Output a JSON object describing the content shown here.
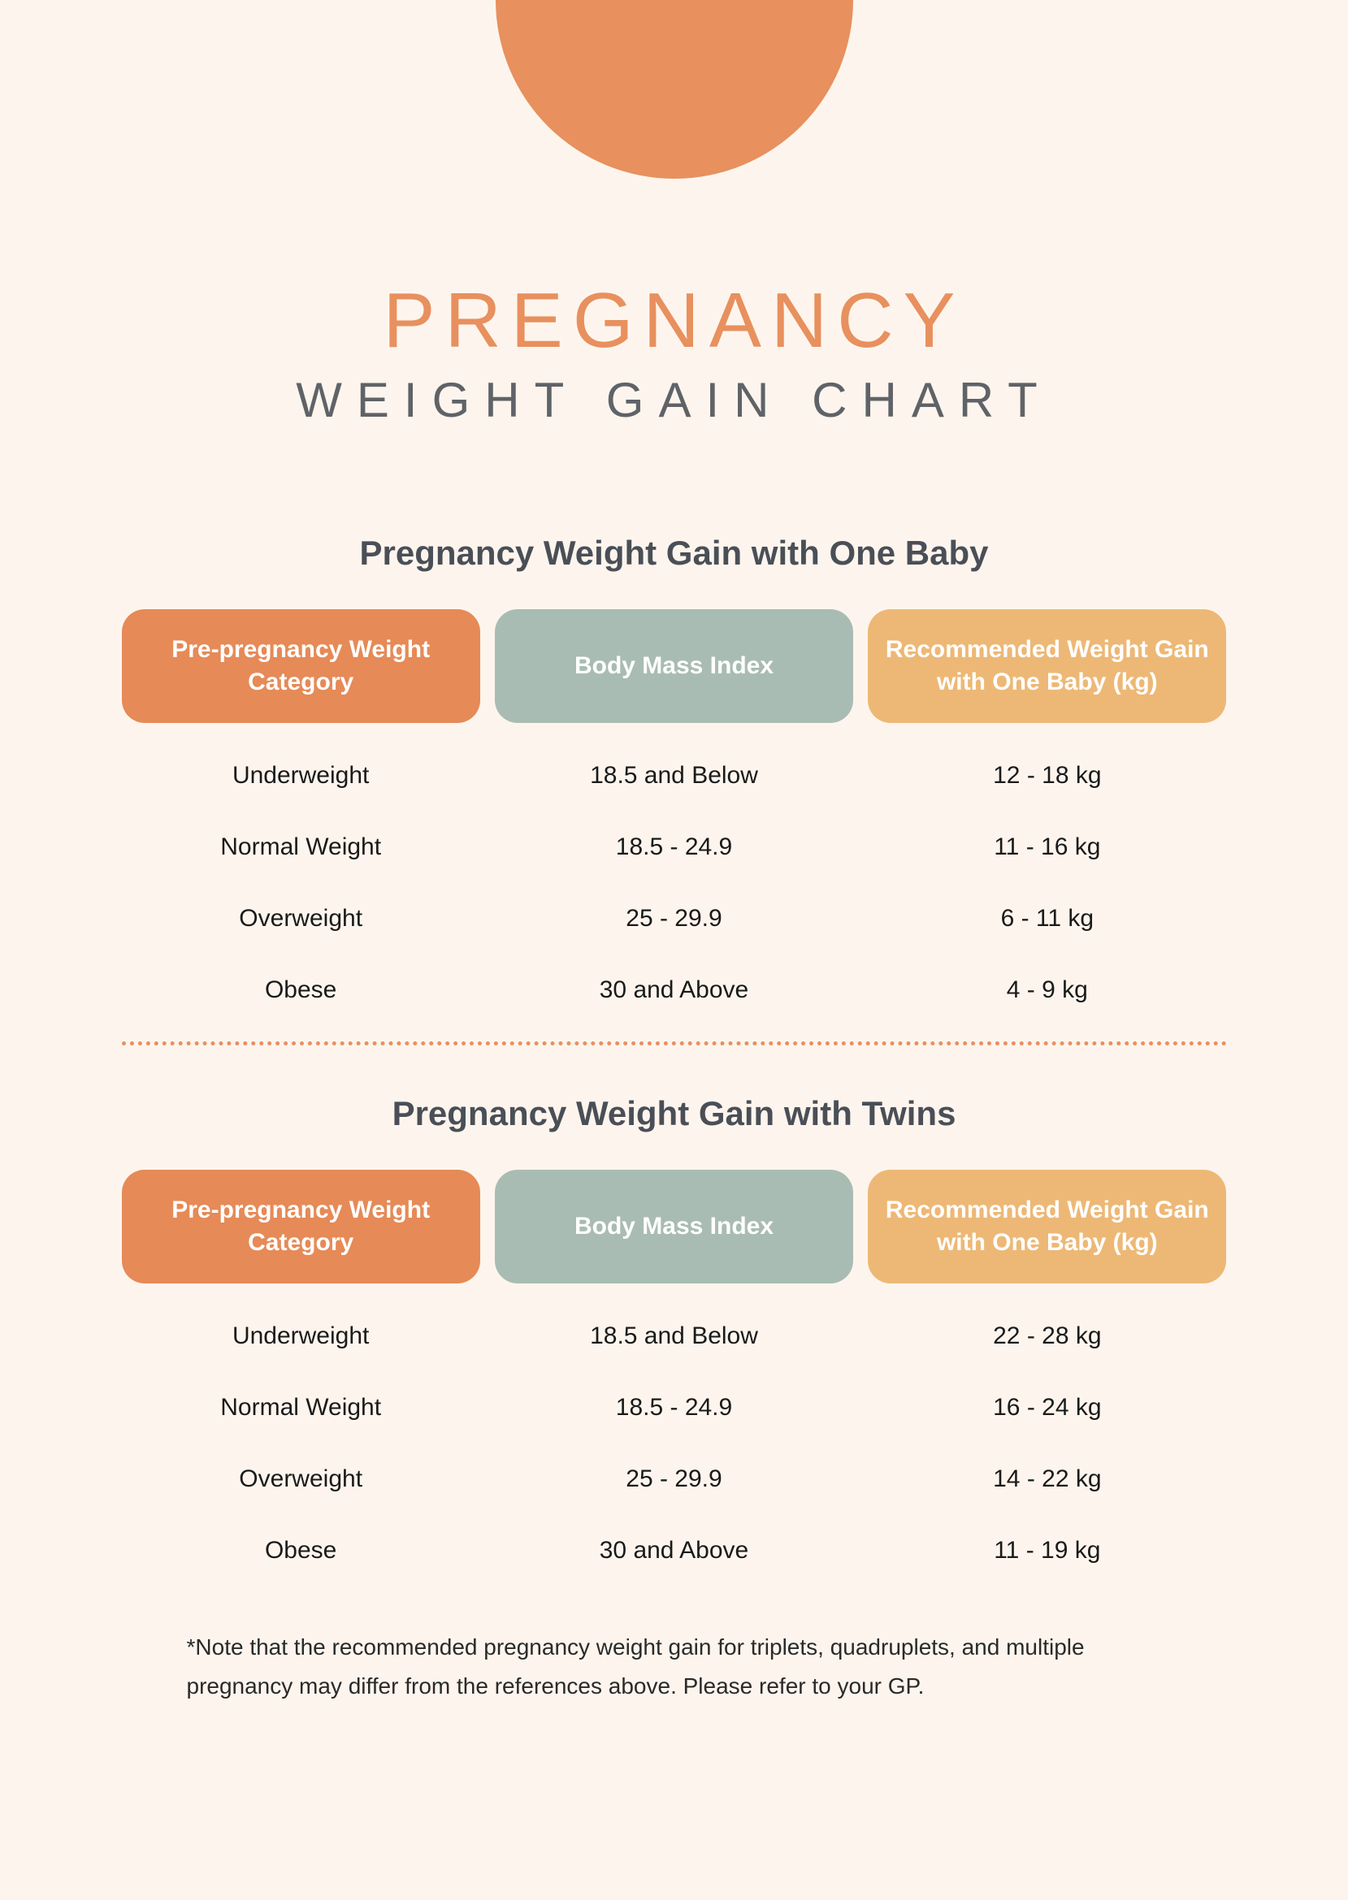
{
  "colors": {
    "background": "#fdf5ed",
    "accent_orange": "#e8905e",
    "header_col1": "#e68a57",
    "header_col2": "#a9bcb3",
    "header_col3": "#edb876",
    "title_orange": "#e8905e",
    "subtitle_gray": "#5f6368",
    "section_title": "#4a4f57",
    "divider": "#e8905e",
    "body_text": "#1a1a1a"
  },
  "header": {
    "title": "PREGNANCY",
    "subtitle": "WEIGHT GAIN CHART"
  },
  "table1": {
    "title": "Pregnancy Weight Gain with One Baby",
    "columns": [
      "Pre-pregnancy Weight Category",
      "Body Mass Index",
      "Recommended Weight Gain with One Baby (kg)"
    ],
    "rows": [
      [
        "Underweight",
        "18.5 and Below",
        "12 - 18 kg"
      ],
      [
        "Normal Weight",
        "18.5 - 24.9",
        "11 - 16 kg"
      ],
      [
        "Overweight",
        "25 - 29.9",
        "6 - 11 kg"
      ],
      [
        "Obese",
        "30 and Above",
        "4 - 9 kg"
      ]
    ]
  },
  "table2": {
    "title": "Pregnancy Weight Gain with Twins",
    "columns": [
      "Pre-pregnancy Weight Category",
      "Body Mass Index",
      "Recommended Weight Gain with One Baby (kg)"
    ],
    "rows": [
      [
        "Underweight",
        "18.5 and Below",
        "22 - 28 kg"
      ],
      [
        "Normal Weight",
        "18.5 - 24.9",
        "16 - 24 kg"
      ],
      [
        "Overweight",
        "25 - 29.9",
        "14 - 22 kg"
      ],
      [
        "Obese",
        "30 and Above",
        "11 - 19 kg"
      ]
    ]
  },
  "footnote": "*Note that the recommended pregnancy weight gain for triplets, quadruplets, and multiple pregnancy may differ from the references above. Please refer to your GP."
}
